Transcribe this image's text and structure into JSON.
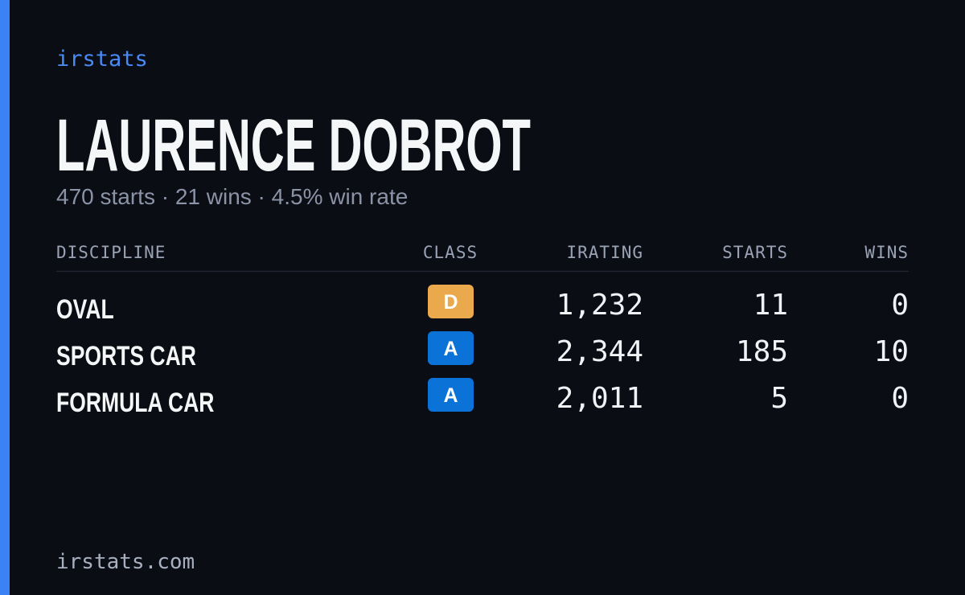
{
  "header": {
    "brand": "irstats",
    "name": "LAURENCE DOBROT",
    "summary": "470 starts · 21 wins · 4.5% win rate"
  },
  "table": {
    "columns": [
      "DISCIPLINE",
      "CLASS",
      "IRATING",
      "STARTS",
      "WINS"
    ],
    "rows": [
      {
        "discipline": "OVAL",
        "class": "D",
        "class_color": "#e9a94c",
        "irating": "1,232",
        "starts": "11",
        "wins": "0"
      },
      {
        "discipline": "SPORTS CAR",
        "class": "A",
        "class_color": "#0b72d8",
        "irating": "2,344",
        "starts": "185",
        "wins": "10"
      },
      {
        "discipline": "FORMULA CAR",
        "class": "A",
        "class_color": "#0b72d8",
        "irating": "2,011",
        "starts": "5",
        "wins": "0"
      }
    ]
  },
  "footer": {
    "site": "irstats.com"
  }
}
